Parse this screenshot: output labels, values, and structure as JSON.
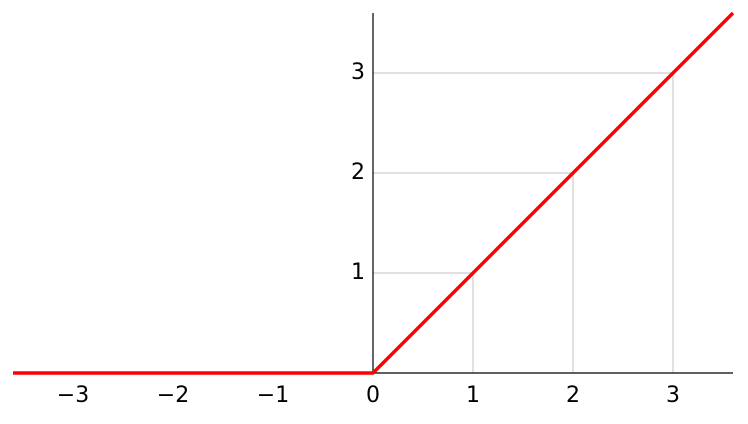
{
  "chart_data": {
    "type": "line",
    "x": [
      -3.6,
      0,
      3.6
    ],
    "values": [
      0,
      0,
      3.6
    ],
    "color": "#ff0000",
    "xlim": [
      -3.6,
      3.6
    ],
    "ylim": [
      0,
      3.6
    ],
    "xticks": [
      {
        "value": -3,
        "label": "−3"
      },
      {
        "value": -2,
        "label": "−2"
      },
      {
        "value": -1,
        "label": "−1"
      },
      0,
      1,
      2,
      3
    ],
    "yticks": [
      1,
      2,
      3
    ],
    "grid": true
  }
}
